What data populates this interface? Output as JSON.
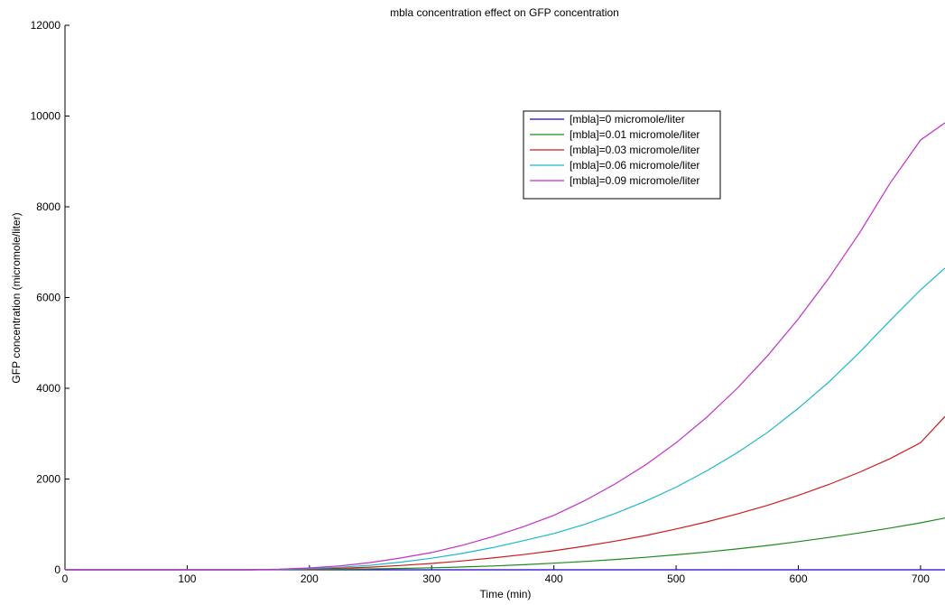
{
  "chart_data": {
    "type": "line",
    "title": "mbla concentration effect on GFP concentration",
    "xlabel": "Time (min)",
    "ylabel": "GFP concentration (micromole/liter)",
    "xlim": [
      0,
      720
    ],
    "ylim": [
      0,
      12000
    ],
    "xticks": [
      "0",
      "100",
      "200",
      "300",
      "400",
      "500",
      "600",
      "700"
    ],
    "yticks": [
      "0",
      "2000",
      "4000",
      "6000",
      "8000",
      "10000",
      "12000"
    ],
    "grid": false,
    "legend_position": "top-right",
    "x": [
      0,
      100,
      150,
      175,
      200,
      225,
      250,
      275,
      300,
      325,
      350,
      375,
      400,
      425,
      450,
      475,
      500,
      525,
      550,
      575,
      600,
      625,
      650,
      675,
      700,
      720
    ],
    "series": [
      {
        "name": "[mbla]=0 micromole/liter",
        "color": "#1f00c8",
        "values": [
          0,
          0,
          0,
          0,
          0,
          0,
          0,
          0,
          0,
          0,
          0,
          0,
          0,
          0,
          0,
          0,
          0,
          0,
          0,
          0,
          0,
          0,
          0,
          0,
          0,
          0
        ]
      },
      {
        "name": "[mbla]=0.01 micromole/liter",
        "color": "#1c8a1c",
        "values": [
          0,
          0,
          0,
          2,
          6,
          12,
          20,
          30,
          44,
          62,
          84,
          112,
          145,
          183,
          226,
          275,
          330,
          392,
          460,
          536,
          620,
          712,
          812,
          920,
          1035,
          1140
        ]
      },
      {
        "name": "[mbla]=0.03 micromole/liter",
        "color": "#cc1c1c",
        "values": [
          0,
          0,
          0,
          5,
          15,
          32,
          58,
          95,
          140,
          195,
          260,
          335,
          420,
          520,
          630,
          755,
          900,
          1055,
          1230,
          1420,
          1640,
          1880,
          2150,
          2450,
          2800,
          3380
        ]
      },
      {
        "name": "[mbla]=0.06 micromole/liter",
        "color": "#1bb8c8",
        "values": [
          0,
          0,
          0,
          8,
          25,
          55,
          100,
          170,
          255,
          360,
          490,
          640,
          800,
          1000,
          1240,
          1510,
          1820,
          2180,
          2580,
          3030,
          3560,
          4140,
          4790,
          5490,
          6170,
          6650
        ]
      },
      {
        "name": "[mbla]=0.09 micromole/liter",
        "color": "#c030c8",
        "values": [
          0,
          0,
          0,
          12,
          40,
          85,
          160,
          260,
          380,
          540,
          730,
          950,
          1200,
          1520,
          1890,
          2310,
          2800,
          3360,
          4000,
          4720,
          5530,
          6430,
          7420,
          8520,
          9470,
          9850
        ]
      }
    ]
  }
}
